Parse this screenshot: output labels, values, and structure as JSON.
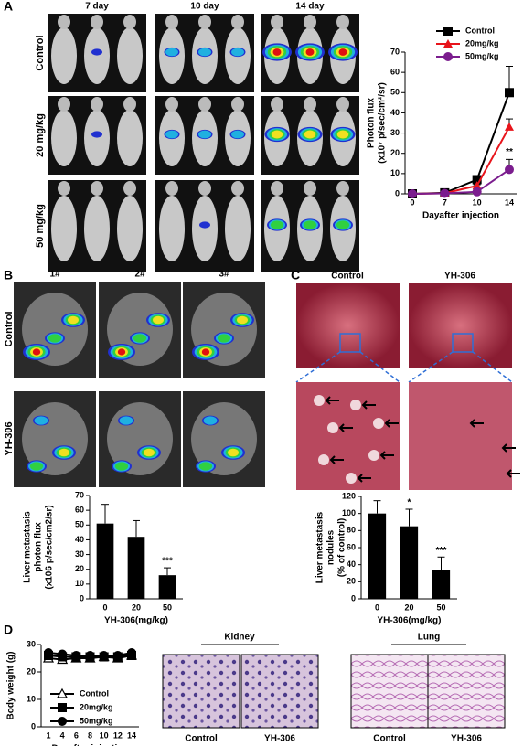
{
  "panel_labels": [
    "A",
    "B",
    "C",
    "D"
  ],
  "panel_a": {
    "columns": [
      "7 day",
      "10 day",
      "14 day"
    ],
    "rows": [
      "Control",
      "20 mg/kg",
      "50 mg/kg"
    ]
  },
  "panel_b": {
    "columns": [
      "1#",
      "2#",
      "3#"
    ],
    "rows": [
      "Control",
      "YH-306"
    ]
  },
  "panel_c": {
    "columns": [
      "Control",
      "YH-306"
    ]
  },
  "panel_d": {
    "kidney": "Kidney",
    "lung": "Lung",
    "columns": [
      "Control",
      "YH-306",
      "Control",
      "YH-306"
    ]
  },
  "chart_data": [
    {
      "type": "line",
      "xlabel": "Dayafter injection",
      "ylabel": [
        "Photon flux",
        "(x10⁷ p/sec/cm²/sr)"
      ],
      "categories": [
        0,
        7,
        10,
        14
      ],
      "ylim": [
        0,
        70
      ],
      "yticks": [
        0,
        10,
        20,
        30,
        40,
        50,
        60,
        70
      ],
      "legend": "top-right",
      "series": [
        {
          "name": "Control",
          "color": "#000000",
          "marker": "square",
          "values": [
            0,
            0.5,
            7,
            50
          ],
          "errors": [
            0,
            0,
            1,
            13
          ]
        },
        {
          "name": "20mg/kg",
          "color": "#e8141b",
          "marker": "triangle",
          "values": [
            0,
            0.3,
            4,
            33
          ],
          "errors": [
            0,
            0,
            0.5,
            4
          ]
        },
        {
          "name": "50mg/kg",
          "color": "#7b1d8e",
          "marker": "circle",
          "values": [
            0,
            0.2,
            1,
            12
          ],
          "errors": [
            0,
            0,
            0.5,
            5
          ],
          "annotations": [
            null,
            null,
            null,
            "**"
          ]
        }
      ]
    },
    {
      "type": "bar",
      "xlabel": "YH-306(mg/kg)",
      "ylabel": [
        "Liver metastasis",
        "photon flux",
        "(x106 p/sec/cm2/sr)"
      ],
      "categories": [
        0,
        20,
        50
      ],
      "values": [
        51,
        42,
        16
      ],
      "errors": [
        13,
        11,
        5
      ],
      "value_annotations": [
        null,
        null,
        "***"
      ],
      "color": "#000000",
      "ylim": [
        0,
        70
      ],
      "yticks": [
        0,
        10,
        20,
        30,
        40,
        50,
        60,
        70
      ]
    },
    {
      "type": "bar",
      "xlabel": "YH-306(mg/kg)",
      "ylabel": [
        "Liver metastasis",
        "nodules",
        "(% of control)"
      ],
      "categories": [
        0,
        20,
        50
      ],
      "values": [
        100,
        85,
        34
      ],
      "errors": [
        15,
        20,
        15
      ],
      "value_annotations": [
        null,
        "*",
        "***"
      ],
      "color": "#000000",
      "ylim": [
        0,
        120
      ],
      "yticks": [
        0,
        20,
        40,
        60,
        80,
        100,
        120
      ]
    },
    {
      "type": "line",
      "xlabel": "Dayafter injection",
      "ylabel": [
        "Body weight (g)"
      ],
      "categories": [
        1,
        4,
        6,
        8,
        10,
        12,
        14
      ],
      "ylim": [
        0,
        30
      ],
      "yticks": [
        0,
        10,
        20,
        30
      ],
      "legend": "bottom-left",
      "series": [
        {
          "name": "Control",
          "color": "#000000",
          "marker": "triangle-open",
          "values": [
            25,
            24.5,
            25,
            25,
            25.5,
            25,
            26
          ]
        },
        {
          "name": "20mg/kg",
          "color": "#000000",
          "marker": "square",
          "values": [
            26,
            25.5,
            25.5,
            25.5,
            25.5,
            25.5,
            26
          ]
        },
        {
          "name": "50mg/kg",
          "color": "#000000",
          "marker": "circle",
          "values": [
            27,
            26.5,
            26,
            26,
            26,
            26,
            27
          ]
        }
      ]
    }
  ]
}
